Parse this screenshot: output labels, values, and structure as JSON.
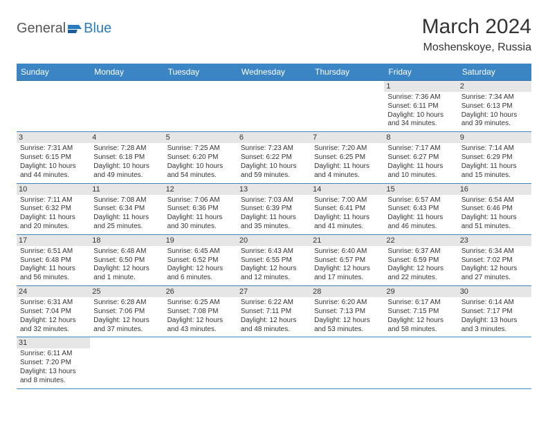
{
  "logo": {
    "part1": "General",
    "part2": "Blue"
  },
  "title": "March 2024",
  "location": "Moshenskoye, Russia",
  "headers": [
    "Sunday",
    "Monday",
    "Tuesday",
    "Wednesday",
    "Thursday",
    "Friday",
    "Saturday"
  ],
  "colors": {
    "header_bg": "#3b85c4",
    "header_text": "#ffffff",
    "row_border": "#3b85c4",
    "daynum_bg": "#e6e6e6",
    "text": "#333333",
    "logo_gray": "#555555",
    "logo_blue": "#2b7bbf"
  },
  "weeks": [
    [
      null,
      null,
      null,
      null,
      null,
      {
        "n": "1",
        "sr": "7:36 AM",
        "ss": "6:11 PM",
        "dl": "10 hours and 34 minutes."
      },
      {
        "n": "2",
        "sr": "7:34 AM",
        "ss": "6:13 PM",
        "dl": "10 hours and 39 minutes."
      }
    ],
    [
      {
        "n": "3",
        "sr": "7:31 AM",
        "ss": "6:15 PM",
        "dl": "10 hours and 44 minutes."
      },
      {
        "n": "4",
        "sr": "7:28 AM",
        "ss": "6:18 PM",
        "dl": "10 hours and 49 minutes."
      },
      {
        "n": "5",
        "sr": "7:25 AM",
        "ss": "6:20 PM",
        "dl": "10 hours and 54 minutes."
      },
      {
        "n": "6",
        "sr": "7:23 AM",
        "ss": "6:22 PM",
        "dl": "10 hours and 59 minutes."
      },
      {
        "n": "7",
        "sr": "7:20 AM",
        "ss": "6:25 PM",
        "dl": "11 hours and 4 minutes."
      },
      {
        "n": "8",
        "sr": "7:17 AM",
        "ss": "6:27 PM",
        "dl": "11 hours and 10 minutes."
      },
      {
        "n": "9",
        "sr": "7:14 AM",
        "ss": "6:29 PM",
        "dl": "11 hours and 15 minutes."
      }
    ],
    [
      {
        "n": "10",
        "sr": "7:11 AM",
        "ss": "6:32 PM",
        "dl": "11 hours and 20 minutes."
      },
      {
        "n": "11",
        "sr": "7:08 AM",
        "ss": "6:34 PM",
        "dl": "11 hours and 25 minutes."
      },
      {
        "n": "12",
        "sr": "7:06 AM",
        "ss": "6:36 PM",
        "dl": "11 hours and 30 minutes."
      },
      {
        "n": "13",
        "sr": "7:03 AM",
        "ss": "6:39 PM",
        "dl": "11 hours and 35 minutes."
      },
      {
        "n": "14",
        "sr": "7:00 AM",
        "ss": "6:41 PM",
        "dl": "11 hours and 41 minutes."
      },
      {
        "n": "15",
        "sr": "6:57 AM",
        "ss": "6:43 PM",
        "dl": "11 hours and 46 minutes."
      },
      {
        "n": "16",
        "sr": "6:54 AM",
        "ss": "6:46 PM",
        "dl": "11 hours and 51 minutes."
      }
    ],
    [
      {
        "n": "17",
        "sr": "6:51 AM",
        "ss": "6:48 PM",
        "dl": "11 hours and 56 minutes."
      },
      {
        "n": "18",
        "sr": "6:48 AM",
        "ss": "6:50 PM",
        "dl": "12 hours and 1 minute."
      },
      {
        "n": "19",
        "sr": "6:45 AM",
        "ss": "6:52 PM",
        "dl": "12 hours and 6 minutes."
      },
      {
        "n": "20",
        "sr": "6:43 AM",
        "ss": "6:55 PM",
        "dl": "12 hours and 12 minutes."
      },
      {
        "n": "21",
        "sr": "6:40 AM",
        "ss": "6:57 PM",
        "dl": "12 hours and 17 minutes."
      },
      {
        "n": "22",
        "sr": "6:37 AM",
        "ss": "6:59 PM",
        "dl": "12 hours and 22 minutes."
      },
      {
        "n": "23",
        "sr": "6:34 AM",
        "ss": "7:02 PM",
        "dl": "12 hours and 27 minutes."
      }
    ],
    [
      {
        "n": "24",
        "sr": "6:31 AM",
        "ss": "7:04 PM",
        "dl": "12 hours and 32 minutes."
      },
      {
        "n": "25",
        "sr": "6:28 AM",
        "ss": "7:06 PM",
        "dl": "12 hours and 37 minutes."
      },
      {
        "n": "26",
        "sr": "6:25 AM",
        "ss": "7:08 PM",
        "dl": "12 hours and 43 minutes."
      },
      {
        "n": "27",
        "sr": "6:22 AM",
        "ss": "7:11 PM",
        "dl": "12 hours and 48 minutes."
      },
      {
        "n": "28",
        "sr": "6:20 AM",
        "ss": "7:13 PM",
        "dl": "12 hours and 53 minutes."
      },
      {
        "n": "29",
        "sr": "6:17 AM",
        "ss": "7:15 PM",
        "dl": "12 hours and 58 minutes."
      },
      {
        "n": "30",
        "sr": "6:14 AM",
        "ss": "7:17 PM",
        "dl": "13 hours and 3 minutes."
      }
    ],
    [
      {
        "n": "31",
        "sr": "6:11 AM",
        "ss": "7:20 PM",
        "dl": "13 hours and 8 minutes."
      },
      null,
      null,
      null,
      null,
      null,
      null
    ]
  ],
  "labels": {
    "sunrise": "Sunrise:",
    "sunset": "Sunset:",
    "daylight": "Daylight:"
  }
}
